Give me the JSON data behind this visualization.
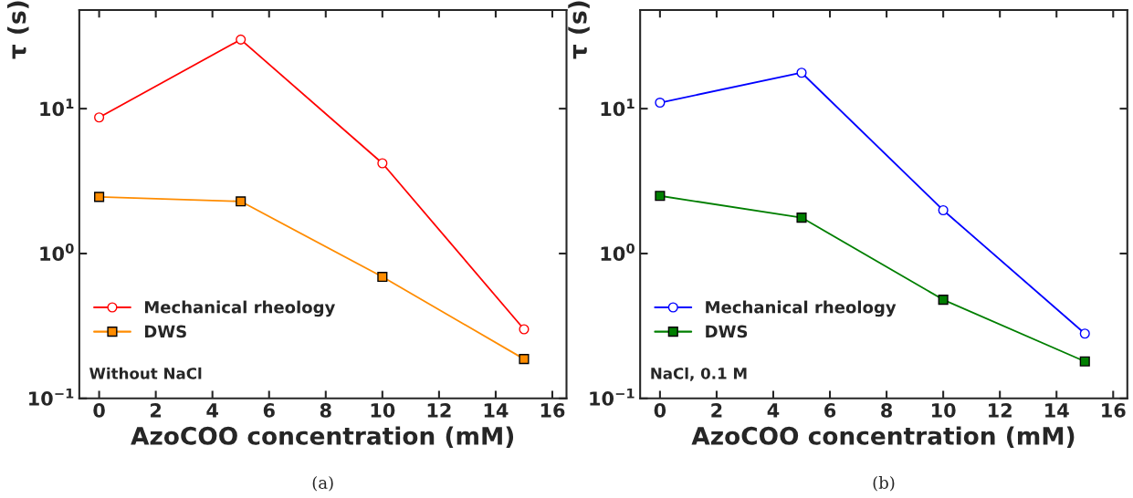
{
  "chart_data": [
    {
      "type": "line",
      "xlabel": "AzoCOO concentration (mM)",
      "ylabel": "τ (s)",
      "x": [
        0,
        5,
        10,
        15
      ],
      "series": [
        {
          "name": "Mechanical rheology",
          "color": "#ff0000",
          "marker": "circle",
          "values": [
            8.7,
            30,
            4.2,
            0.3
          ]
        },
        {
          "name": "DWS",
          "color": "#ff8c00",
          "marker": "square",
          "values": [
            2.46,
            2.29,
            0.69,
            0.187
          ]
        }
      ],
      "log": "y",
      "xlim": [
        -0.7,
        16.5
      ],
      "xticks": [
        0,
        2,
        4,
        6,
        8,
        10,
        12,
        14,
        16
      ],
      "ylim": [
        0.1,
        48
      ],
      "yticks": [
        {
          "value": 0.1,
          "label": "10$^{−1}$"
        },
        {
          "value": 1,
          "label": "10$^{0}$"
        },
        {
          "value": 10,
          "label": "10$^{1}$"
        }
      ],
      "legend": "bottom left",
      "annotations": [
        "Without NaCl",
        "(a)"
      ]
    },
    {
      "type": "line",
      "xlabel": "AzoCOO concentration (mM)",
      "ylabel": "τ (s)",
      "x": [
        0,
        5,
        10,
        15
      ],
      "series": [
        {
          "name": "Mechanical rheology",
          "color": "#0000ff",
          "marker": "circle",
          "values": [
            11.0,
            17.7,
            1.99,
            0.28
          ]
        },
        {
          "name": "DWS",
          "color": "#007f00",
          "marker": "square",
          "values": [
            2.5,
            1.77,
            0.48,
            0.18
          ]
        }
      ],
      "log": "y",
      "xlim": [
        -0.7,
        16.5
      ],
      "xticks": [
        0,
        2,
        4,
        6,
        8,
        10,
        12,
        14,
        16
      ],
      "ylim": [
        0.1,
        48
      ],
      "yticks": [
        {
          "value": 0.1,
          "label": "10$^{−1}$"
        },
        {
          "value": 1,
          "label": "10$^{0}$"
        },
        {
          "value": 10,
          "label": "10$^{1}$"
        }
      ],
      "legend": "bottom left",
      "annotations": [
        "NaCl, 0.1 M",
        "(b)"
      ]
    }
  ]
}
